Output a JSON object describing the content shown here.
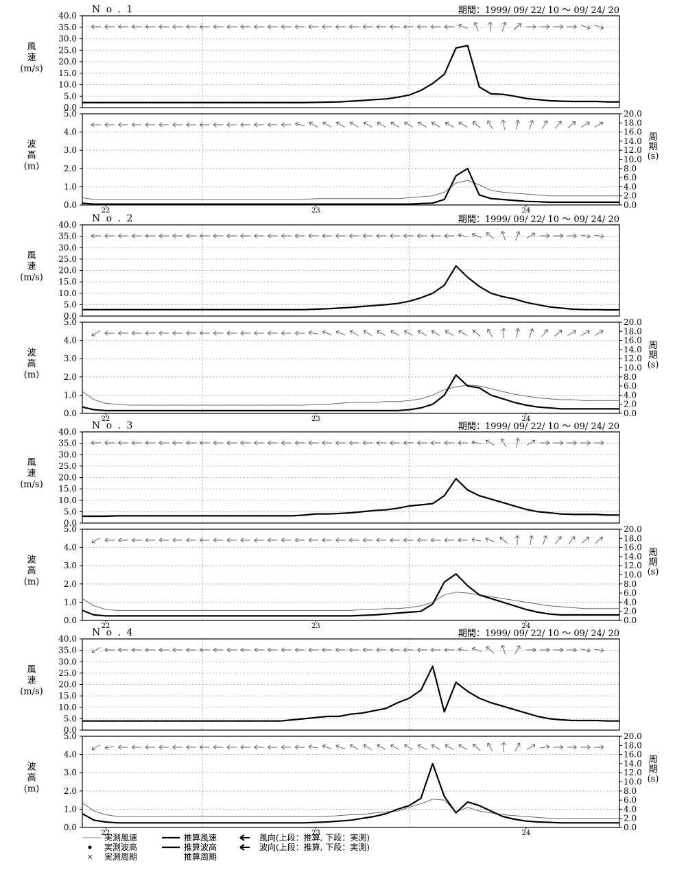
{
  "chart_data": [
    {
      "type": "line",
      "station": "N o .  1",
      "period": "期間：1999/ 09/ 22/ 10  〜  09/ 24/ 20",
      "ylabel": [
        "風",
        "速",
        "(m/s)"
      ],
      "ylim": [
        0,
        40
      ],
      "yticks": [
        "0.0",
        "5.0",
        "10.0",
        "15.0",
        "20.0",
        "25.0",
        "30.0",
        "35.0",
        "40.0"
      ],
      "x_range": [
        0,
        46
      ],
      "series": [
        {
          "values": [
            2.2,
            2.2,
            2.2,
            2.2,
            2.2,
            2.2,
            2.2,
            2.2,
            2.2,
            2.2,
            2.2,
            2.2,
            2.2,
            2.2,
            2.2,
            2.2,
            2.2,
            2.2,
            2.2,
            2.2,
            2.3,
            2.4,
            2.5,
            2.8,
            3.1,
            3.5,
            3.8,
            4.5,
            5.5,
            7.5,
            10.5,
            14.5,
            26.0,
            27.0,
            9.0,
            6.0,
            5.8,
            5.0,
            4.0,
            3.5,
            3.0,
            2.8,
            2.7,
            2.7,
            2.7,
            2.5,
            2.5
          ]
        }
      ],
      "arrow_angles": [
        0,
        0,
        0,
        0,
        0,
        0,
        0,
        0,
        0,
        0,
        0,
        0,
        0,
        0,
        0,
        0,
        0,
        0,
        0,
        0,
        0,
        0,
        0,
        0,
        0,
        0,
        0,
        -20,
        -70,
        -90,
        -110,
        -140,
        -180,
        -180,
        -180,
        -180,
        -200,
        -200
      ]
    },
    {
      "type": "line",
      "ylabel": [
        "波",
        "高",
        "(m)"
      ],
      "y2label": [
        "周",
        "期",
        "(s)"
      ],
      "ylim": [
        0,
        5
      ],
      "y2lim": [
        0,
        20
      ],
      "yticks": [
        "0.0",
        "1.0",
        "2.0",
        "3.0",
        "4.0",
        "5.0"
      ],
      "y2ticks": [
        "0.0",
        "2.0",
        "4.0",
        "6.0",
        "8.0",
        "10.0",
        "12.0",
        "14.0",
        "16.0",
        "18.0",
        "20.0"
      ],
      "xticks": [
        {
          "x": 2,
          "label": "22"
        },
        {
          "x": 20,
          "label": "23"
        },
        {
          "x": 38,
          "label": "24"
        }
      ],
      "series": [
        {
          "values": [
            0.4,
            0.3,
            0.3,
            0.3,
            0.3,
            0.3,
            0.3,
            0.3,
            0.3,
            0.3,
            0.3,
            0.3,
            0.3,
            0.3,
            0.3,
            0.3,
            0.3,
            0.3,
            0.3,
            0.3,
            0.35,
            0.35,
            0.35,
            0.35,
            0.35,
            0.35,
            0.35,
            0.35,
            0.4,
            0.45,
            0.5,
            0.7,
            1.2,
            1.35,
            1.1,
            0.8,
            0.7,
            0.65,
            0.6,
            0.55,
            0.5,
            0.5,
            0.5,
            0.5,
            0.5,
            0.5,
            0.5
          ]
        },
        {
          "values": [
            0.1,
            0.05,
            0.05,
            0.05,
            0.05,
            0.05,
            0.05,
            0.05,
            0.05,
            0.05,
            0.05,
            0.05,
            0.05,
            0.05,
            0.05,
            0.05,
            0.05,
            0.05,
            0.05,
            0.05,
            0.05,
            0.05,
            0.05,
            0.05,
            0.05,
            0.05,
            0.05,
            0.05,
            0.05,
            0.08,
            0.1,
            0.3,
            1.6,
            2.0,
            0.55,
            0.35,
            0.3,
            0.25,
            0.2,
            0.18,
            0.15,
            0.15,
            0.15,
            0.15,
            0.15,
            0.15,
            0.15
          ]
        }
      ],
      "arrow_angles": [
        0,
        0,
        0,
        0,
        0,
        0,
        0,
        0,
        0,
        0,
        0,
        0,
        0,
        0,
        0,
        -15,
        -30,
        -30,
        -30,
        -30,
        -30,
        -30,
        -30,
        -30,
        -30,
        -30,
        -30,
        -30,
        -40,
        -60,
        -80,
        -100,
        -110,
        -120,
        -130,
        -140,
        -150,
        -150
      ]
    },
    {
      "type": "line",
      "station": "N o .  2",
      "period": "期間：1999/ 09/ 22/ 10  〜  09/ 24/ 20",
      "ylabel": [
        "風",
        "速",
        "(m/s)"
      ],
      "ylim": [
        0,
        40
      ],
      "yticks": [
        "0.0",
        "5.0",
        "10.0",
        "15.0",
        "20.0",
        "25.0",
        "30.0",
        "35.0",
        "40.0"
      ],
      "series": [
        {
          "values": [
            2.8,
            2.8,
            2.8,
            2.8,
            2.8,
            2.8,
            2.8,
            2.8,
            2.8,
            2.8,
            2.8,
            2.8,
            2.8,
            2.8,
            2.8,
            2.8,
            2.8,
            2.8,
            2.8,
            2.8,
            3.0,
            3.2,
            3.5,
            3.8,
            4.2,
            4.6,
            5.0,
            5.5,
            6.5,
            8.0,
            10.0,
            13.5,
            22.0,
            17.0,
            13.0,
            10.0,
            8.5,
            7.5,
            6.0,
            5.0,
            4.0,
            3.5,
            3.0,
            2.8,
            2.8,
            2.7,
            2.7
          ]
        }
      ],
      "arrow_angles": [
        0,
        0,
        0,
        0,
        0,
        0,
        0,
        0,
        0,
        0,
        0,
        0,
        0,
        0,
        0,
        0,
        0,
        0,
        0,
        0,
        0,
        0,
        0,
        0,
        0,
        0,
        0,
        -10,
        -20,
        -40,
        -70,
        -110,
        -150,
        -180,
        -180,
        -180,
        -190,
        -190
      ]
    },
    {
      "type": "line",
      "ylabel": [
        "波",
        "高",
        "(m)"
      ],
      "y2label": [
        "周",
        "期",
        "(s)"
      ],
      "ylim": [
        0,
        5
      ],
      "y2lim": [
        0,
        20
      ],
      "yticks": [
        "0.0",
        "1.0",
        "2.0",
        "3.0",
        "4.0",
        "5.0"
      ],
      "y2ticks": [
        "0.0",
        "2.0",
        "4.0",
        "6.0",
        "8.0",
        "10.0",
        "12.0",
        "14.0",
        "16.0",
        "18.0",
        "20.0"
      ],
      "xticks": [
        {
          "x": 2,
          "label": "22"
        },
        {
          "x": 20,
          "label": "23"
        },
        {
          "x": 38,
          "label": "24"
        }
      ],
      "series": [
        {
          "values": [
            1.2,
            0.75,
            0.55,
            0.5,
            0.45,
            0.45,
            0.45,
            0.45,
            0.45,
            0.45,
            0.45,
            0.45,
            0.45,
            0.45,
            0.45,
            0.45,
            0.45,
            0.45,
            0.45,
            0.45,
            0.5,
            0.5,
            0.55,
            0.6,
            0.6,
            0.6,
            0.65,
            0.65,
            0.7,
            0.8,
            1.0,
            1.3,
            1.45,
            1.55,
            1.5,
            1.35,
            1.2,
            1.05,
            0.95,
            0.85,
            0.8,
            0.75,
            0.75,
            0.7,
            0.7,
            0.7,
            0.7
          ]
        },
        {
          "values": [
            0.35,
            0.2,
            0.15,
            0.15,
            0.15,
            0.15,
            0.15,
            0.15,
            0.15,
            0.15,
            0.15,
            0.15,
            0.15,
            0.15,
            0.15,
            0.15,
            0.15,
            0.15,
            0.15,
            0.15,
            0.15,
            0.15,
            0.15,
            0.15,
            0.15,
            0.15,
            0.15,
            0.15,
            0.2,
            0.3,
            0.5,
            1.0,
            2.1,
            1.5,
            1.4,
            1.0,
            0.8,
            0.6,
            0.45,
            0.35,
            0.3,
            0.25,
            0.25,
            0.25,
            0.25,
            0.25,
            0.25
          ]
        }
      ],
      "arrow_angles": [
        30,
        0,
        0,
        0,
        0,
        0,
        0,
        0,
        0,
        0,
        0,
        0,
        0,
        0,
        0,
        0,
        -10,
        -20,
        -20,
        -30,
        -30,
        -30,
        -30,
        -30,
        -30,
        -30,
        -30,
        -30,
        -40,
        -60,
        -90,
        -100,
        -110,
        -130,
        -140,
        -150,
        -150,
        -150
      ]
    },
    {
      "type": "line",
      "station": "N o .  3",
      "period": "期間：1999/ 09/ 22/ 10  〜  09/ 24/ 20",
      "ylabel": [
        "風",
        "速",
        "(m/s)"
      ],
      "ylim": [
        0,
        40
      ],
      "yticks": [
        "0.0",
        "5.0",
        "10.0",
        "15.0",
        "20.0",
        "25.0",
        "30.0",
        "35.0",
        "40.0"
      ],
      "series": [
        {
          "values": [
            3.0,
            3.0,
            3.0,
            3.2,
            3.2,
            3.2,
            3.2,
            3.2,
            3.2,
            3.2,
            3.2,
            3.2,
            3.2,
            3.2,
            3.2,
            3.2,
            3.2,
            3.2,
            3.2,
            3.5,
            4.0,
            4.0,
            4.2,
            4.5,
            5.0,
            5.5,
            5.8,
            6.5,
            7.5,
            8.0,
            8.5,
            12.0,
            19.5,
            14.5,
            12.0,
            10.5,
            9.0,
            7.5,
            6.0,
            5.0,
            4.5,
            4.0,
            3.8,
            3.8,
            3.8,
            3.5,
            3.5
          ]
        }
      ],
      "arrow_angles": [
        0,
        0,
        0,
        0,
        0,
        0,
        0,
        0,
        0,
        0,
        0,
        0,
        0,
        0,
        0,
        0,
        0,
        0,
        0,
        0,
        0,
        0,
        0,
        0,
        0,
        0,
        0,
        0,
        -10,
        -30,
        -60,
        -100,
        -150,
        -180,
        -180,
        -180,
        -180,
        -180
      ]
    },
    {
      "type": "line",
      "ylabel": [
        "波",
        "高",
        "(m)"
      ],
      "y2label": [
        "周",
        "期",
        "(s)"
      ],
      "ylim": [
        0,
        5
      ],
      "y2lim": [
        0,
        20
      ],
      "yticks": [
        "0.0",
        "1.0",
        "2.0",
        "3.0",
        "4.0",
        "5.0"
      ],
      "y2ticks": [
        "0.0",
        "2.0",
        "4.0",
        "6.0",
        "8.0",
        "10.0",
        "12.0",
        "14.0",
        "16.0",
        "18.0",
        "20.0"
      ],
      "xticks": [
        {
          "x": 2,
          "label": "22"
        },
        {
          "x": 20,
          "label": "23"
        },
        {
          "x": 38,
          "label": "24"
        }
      ],
      "series": [
        {
          "values": [
            1.2,
            0.8,
            0.6,
            0.55,
            0.55,
            0.55,
            0.55,
            0.55,
            0.55,
            0.55,
            0.55,
            0.55,
            0.55,
            0.55,
            0.55,
            0.55,
            0.55,
            0.55,
            0.55,
            0.55,
            0.55,
            0.55,
            0.55,
            0.55,
            0.6,
            0.6,
            0.65,
            0.65,
            0.7,
            0.8,
            1.0,
            1.4,
            1.55,
            1.5,
            1.4,
            1.3,
            1.2,
            1.1,
            1.0,
            0.9,
            0.8,
            0.75,
            0.7,
            0.65,
            0.65,
            0.65,
            0.65
          ]
        },
        {
          "values": [
            0.55,
            0.3,
            0.25,
            0.25,
            0.25,
            0.25,
            0.25,
            0.25,
            0.25,
            0.25,
            0.25,
            0.25,
            0.25,
            0.25,
            0.25,
            0.25,
            0.25,
            0.25,
            0.25,
            0.25,
            0.25,
            0.25,
            0.25,
            0.25,
            0.28,
            0.3,
            0.35,
            0.4,
            0.45,
            0.5,
            0.9,
            2.1,
            2.55,
            1.9,
            1.4,
            1.2,
            1.0,
            0.8,
            0.6,
            0.45,
            0.35,
            0.3,
            0.3,
            0.3,
            0.3,
            0.3,
            0.3
          ]
        }
      ],
      "arrow_angles": [
        30,
        0,
        0,
        0,
        0,
        0,
        0,
        0,
        0,
        0,
        0,
        0,
        0,
        0,
        0,
        0,
        0,
        0,
        0,
        0,
        0,
        0,
        0,
        0,
        0,
        0,
        0,
        0,
        -10,
        -20,
        -40,
        -90,
        -100,
        -110,
        -130,
        -130,
        -140,
        -140
      ]
    },
    {
      "type": "line",
      "station": "N o .  4",
      "period": "期間：1999/ 09/ 22/ 10  〜  09/ 24/ 20",
      "ylabel": [
        "風",
        "速",
        "(m/s)"
      ],
      "ylim": [
        0,
        40
      ],
      "yticks": [
        "0.0",
        "5.0",
        "10.0",
        "15.0",
        "20.0",
        "25.0",
        "30.0",
        "35.0",
        "40.0"
      ],
      "series": [
        {
          "values": [
            4.0,
            4.0,
            4.0,
            4.0,
            4.0,
            4.0,
            4.0,
            4.0,
            4.0,
            4.0,
            4.0,
            4.0,
            4.0,
            4.0,
            4.0,
            4.0,
            4.0,
            4.0,
            4.5,
            5.0,
            5.5,
            6.0,
            6.0,
            7.0,
            7.5,
            8.5,
            9.5,
            12.0,
            14.0,
            17.5,
            28.0,
            8.0,
            21.0,
            17.0,
            14.0,
            12.0,
            10.5,
            9.0,
            7.5,
            6.0,
            5.0,
            4.5,
            4.2,
            4.2,
            4.2,
            4.0,
            4.0
          ]
        }
      ],
      "arrow_angles": [
        30,
        0,
        0,
        0,
        0,
        0,
        0,
        0,
        0,
        0,
        0,
        0,
        0,
        0,
        0,
        0,
        0,
        0,
        0,
        0,
        0,
        0,
        0,
        0,
        0,
        0,
        0,
        -10,
        -20,
        -40,
        -70,
        -120,
        -180,
        -180,
        -180,
        -180,
        -190,
        -190
      ]
    },
    {
      "type": "line",
      "ylabel": [
        "波",
        "高",
        "(m)"
      ],
      "y2label": [
        "周",
        "期",
        "(s)"
      ],
      "ylim": [
        0,
        5
      ],
      "y2lim": [
        0,
        20
      ],
      "yticks": [
        "0.0",
        "1.0",
        "2.0",
        "3.0",
        "4.0",
        "5.0"
      ],
      "y2ticks": [
        "0.0",
        "2.0",
        "4.0",
        "6.0",
        "8.0",
        "10.0",
        "12.0",
        "14.0",
        "16.0",
        "18.0",
        "20.0"
      ],
      "xticks": [
        {
          "x": 2,
          "label": "22"
        },
        {
          "x": 20,
          "label": "23"
        },
        {
          "x": 38,
          "label": "24"
        }
      ],
      "series": [
        {
          "values": [
            1.35,
            0.9,
            0.7,
            0.6,
            0.6,
            0.6,
            0.6,
            0.6,
            0.6,
            0.6,
            0.6,
            0.6,
            0.6,
            0.6,
            0.6,
            0.6,
            0.6,
            0.6,
            0.6,
            0.6,
            0.6,
            0.6,
            0.65,
            0.7,
            0.7,
            0.8,
            0.85,
            0.9,
            1.1,
            1.3,
            1.55,
            1.5,
            0.85,
            1.1,
            0.9,
            0.8,
            0.7,
            0.65,
            0.6,
            0.55,
            0.5,
            0.5,
            0.5,
            0.5,
            0.5,
            0.5,
            0.5
          ]
        },
        {
          "values": [
            0.75,
            0.4,
            0.3,
            0.25,
            0.25,
            0.25,
            0.25,
            0.25,
            0.25,
            0.25,
            0.25,
            0.25,
            0.25,
            0.25,
            0.25,
            0.25,
            0.25,
            0.25,
            0.25,
            0.25,
            0.28,
            0.3,
            0.35,
            0.4,
            0.5,
            0.6,
            0.75,
            1.0,
            1.2,
            1.6,
            3.5,
            1.7,
            0.8,
            1.4,
            1.2,
            0.9,
            0.6,
            0.45,
            0.35,
            0.3,
            0.28,
            0.25,
            0.25,
            0.25,
            0.25,
            0.25,
            0.25
          ]
        }
      ],
      "arrow_angles": [
        30,
        10,
        0,
        0,
        0,
        0,
        0,
        0,
        0,
        0,
        0,
        0,
        0,
        0,
        0,
        0,
        -10,
        -20,
        -20,
        -30,
        -30,
        -30,
        -30,
        -30,
        -30,
        -30,
        -30,
        -30,
        -40,
        -60,
        -90,
        -120,
        -150,
        -170,
        -180,
        -180,
        -180,
        -180
      ]
    }
  ],
  "legend": {
    "col1": [
      "実測風速",
      "実測波高",
      "実測周期"
    ],
    "col2": [
      "推算風速",
      "推算波高",
      "推算周期"
    ],
    "col3": [
      "風向(上段：推算, 下段：実測)",
      "波向(上段：推算, 下段：実測)"
    ]
  }
}
